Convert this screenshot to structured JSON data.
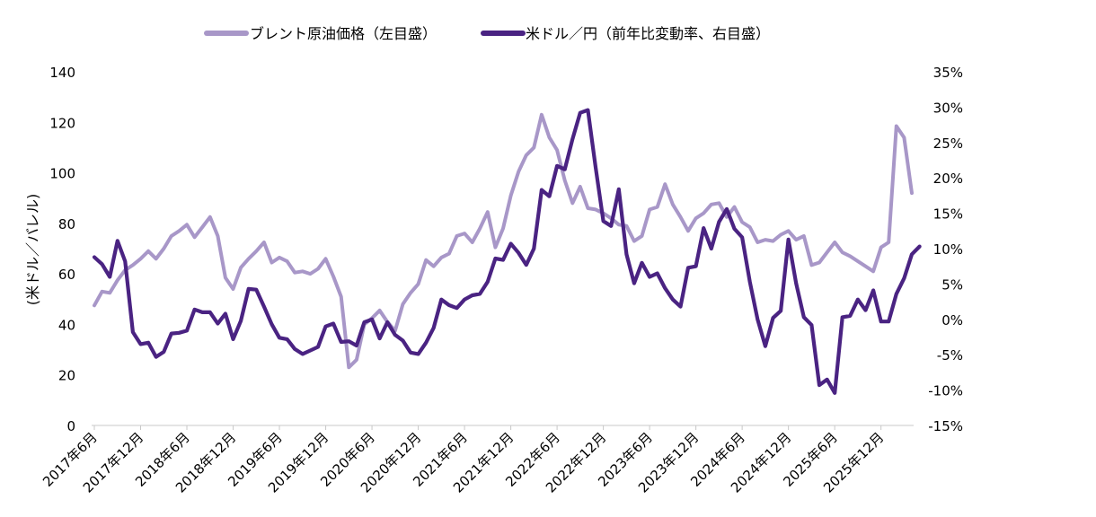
{
  "chart_data": {
    "type": "line",
    "title": "",
    "ylabel_left": "(米ドル／バレル)",
    "ylabel_right": "",
    "left_axis": {
      "ylim": [
        0,
        140
      ],
      "ticks": [
        0,
        20,
        40,
        60,
        80,
        100,
        120,
        140
      ],
      "tick_labels": [
        "0",
        "20",
        "40",
        "60",
        "80",
        "100",
        "120",
        "140"
      ]
    },
    "right_axis": {
      "ylim": [
        -15,
        35
      ],
      "ticks": [
        -15,
        -10,
        -5,
        0,
        5,
        10,
        15,
        20,
        25,
        30,
        35
      ],
      "tick_labels": [
        "-15%",
        "-10%",
        "-5%",
        "0%",
        "5%",
        "10%",
        "15%",
        "20%",
        "25%",
        "30%",
        "35%"
      ]
    },
    "x_tick_labels": [
      "2017年6月",
      "2017年12月",
      "2018年6月",
      "2018年12月",
      "2019年6月",
      "2019年12月",
      "2020年6月",
      "2020年12月",
      "2021年6月",
      "2021年12月",
      "2022年6月",
      "2022年12月",
      "2023年6月",
      "2023年12月",
      "2024年6月",
      "2024年12月",
      "2025年6月",
      "2025年12月"
    ],
    "legend_position": "top",
    "grid": false,
    "series": [
      {
        "name": "ブレント原油価格（左目盛）",
        "axis": "left",
        "color": "#a897c8",
        "start": "2017年6月",
        "values": [
          47.5,
          53,
          52.5,
          57.5,
          61.5,
          63.5,
          66,
          69,
          66,
          70,
          75,
          77,
          79.5,
          74.5,
          78.5,
          82.5,
          75,
          58.5,
          54,
          62.5,
          66,
          69,
          72.5,
          64.5,
          66.5,
          65,
          60.5,
          61,
          60,
          62,
          66,
          59,
          51,
          23,
          26,
          40,
          42.5,
          45.5,
          41,
          37.5,
          48,
          52.5,
          56,
          65.5,
          63,
          66.5,
          68,
          75,
          76,
          72.5,
          78,
          84.5,
          70.5,
          78,
          91,
          100.5,
          107,
          110,
          123,
          114,
          109,
          97,
          88,
          94.5,
          86,
          85.5,
          84,
          82,
          79.5,
          79,
          73,
          75,
          85.5,
          86.5,
          95.5,
          87.5,
          82.5,
          77,
          82,
          84,
          87.5,
          88,
          82.5,
          86.5,
          80.5,
          78.5,
          72.5,
          73.5,
          73,
          75.5,
          77,
          73.5,
          75,
          63.5,
          64.5,
          68.5,
          72.5,
          68.5,
          67,
          65,
          63,
          61,
          70.5,
          72.5,
          118.5,
          114,
          92
        ]
      },
      {
        "name": "米ドル／円（前年比変動率、右目盛）",
        "axis": "right",
        "color": "#4a2382",
        "start": "2017年6月",
        "values": [
          8.8,
          7.8,
          6,
          11.1,
          8.2,
          -1.8,
          -3.5,
          -3.3,
          -5.3,
          -4.6,
          -2,
          -1.9,
          -1.6,
          1.4,
          1,
          1,
          -0.6,
          0.8,
          -2.8,
          -0.2,
          4.3,
          4.2,
          1.8,
          -0.7,
          -2.6,
          -2.8,
          -4.2,
          -4.9,
          -4.4,
          -3.9,
          -1,
          -0.6,
          -3.2,
          -3.1,
          -3.7,
          -0.4,
          0,
          -2.7,
          -0.4,
          -2.2,
          -3,
          -4.7,
          -4.9,
          -3.3,
          -1.2,
          2.8,
          2,
          1.6,
          2.8,
          3.4,
          3.6,
          5.3,
          8.6,
          8.4,
          10.7,
          9.4,
          7.7,
          10,
          18.3,
          17.4,
          21.7,
          21.2,
          25.5,
          29.2,
          29.6,
          21.5,
          13.9,
          13.2,
          18.4,
          9.2,
          5.1,
          8,
          6,
          6.5,
          4.4,
          2.8,
          1.8,
          7.3,
          7.5,
          12.9,
          10,
          13.8,
          15.6,
          12.8,
          11.6,
          5.3,
          0,
          -3.8,
          0.2,
          1.2,
          11.3,
          5.1,
          0.3,
          -0.8,
          -9.3,
          -8.5,
          -10.4,
          0.3,
          0.5,
          2.8,
          1.3,
          4.1,
          -0.3,
          -0.3,
          3.6,
          5.8,
          9.2,
          10.3
        ]
      }
    ]
  }
}
